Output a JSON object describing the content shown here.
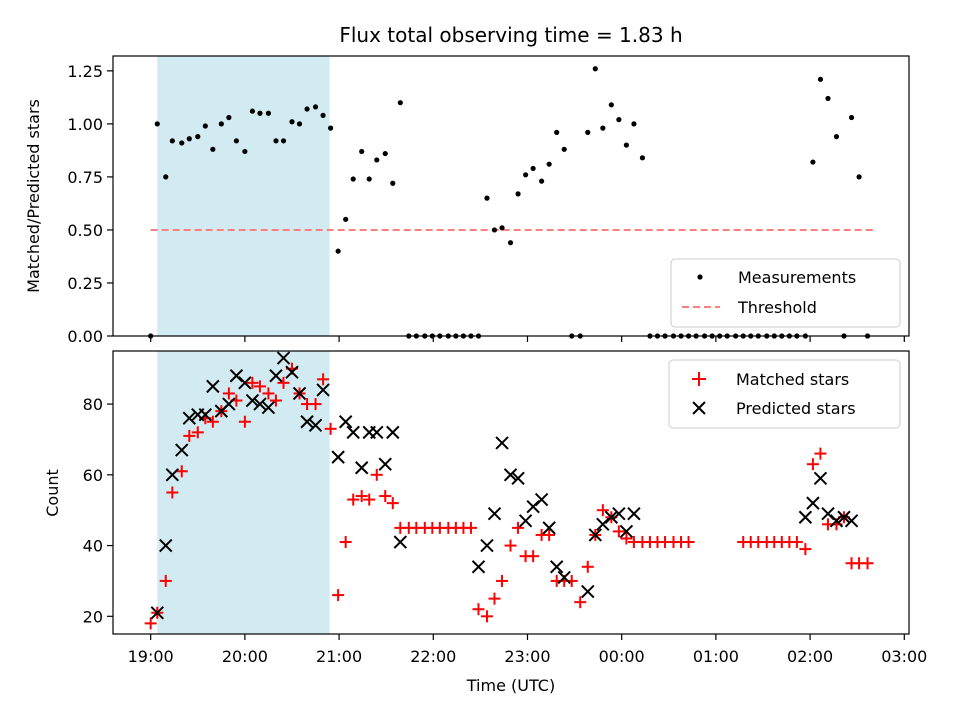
{
  "chart_data": {
    "type": "scatter",
    "title": "Flux total observing time = 1.83 h",
    "xlabel": "Time (UTC)",
    "x_range_hours": [
      18.6,
      27.05
    ],
    "x_ticks": [
      {
        "h": 19,
        "label": "19:00"
      },
      {
        "h": 20,
        "label": "20:00"
      },
      {
        "h": 21,
        "label": "21:00"
      },
      {
        "h": 22,
        "label": "22:00"
      },
      {
        "h": 23,
        "label": "23:00"
      },
      {
        "h": 24,
        "label": "00:00"
      },
      {
        "h": 25,
        "label": "01:00"
      },
      {
        "h": 26,
        "label": "02:00"
      },
      {
        "h": 27,
        "label": "03:00"
      }
    ],
    "observing_window_hours": [
      19.07,
      20.9
    ],
    "highlight_color": "#add8e6",
    "top_panel": {
      "ylabel": "Matched/Predicted stars",
      "ylim": [
        0,
        1.32
      ],
      "y_ticks": [
        {
          "v": 0,
          "label": "0.00"
        },
        {
          "v": 0.25,
          "label": "0.25"
        },
        {
          "v": 0.5,
          "label": "0.50"
        },
        {
          "v": 0.75,
          "label": "0.75"
        },
        {
          "v": 1.0,
          "label": "1.00"
        },
        {
          "v": 1.25,
          "label": "1.25"
        }
      ],
      "threshold": {
        "value": 0.5,
        "x_from": 19.0,
        "x_to": 26.7,
        "color": "#ff7f7f",
        "label": "Threshold"
      },
      "measurements": {
        "label": "Measurements",
        "color": "#000000",
        "x": [
          19.0,
          19.07,
          19.16,
          19.23,
          19.33,
          19.41,
          19.5,
          19.58,
          19.66,
          19.75,
          19.83,
          19.91,
          20.0,
          20.08,
          20.16,
          20.25,
          20.33,
          20.41,
          20.5,
          20.58,
          20.66,
          20.75,
          20.83,
          20.91,
          20.99,
          21.07,
          21.15,
          21.24,
          21.32,
          21.4,
          21.49,
          21.57,
          21.65,
          21.74,
          21.82,
          21.91,
          21.99,
          22.07,
          22.16,
          22.24,
          22.32,
          22.4,
          22.48,
          22.57,
          22.65,
          22.73,
          22.82,
          22.9,
          22.98,
          23.06,
          23.15,
          23.23,
          23.31,
          23.39,
          23.47,
          23.56,
          23.64,
          23.72,
          23.8,
          23.89,
          23.97,
          24.05,
          24.13,
          24.22,
          24.3,
          24.38,
          24.46,
          24.55,
          24.63,
          24.71,
          24.79,
          24.88,
          24.96,
          25.04,
          25.12,
          25.21,
          25.29,
          25.37,
          25.45,
          25.54,
          25.62,
          25.7,
          25.78,
          25.86,
          25.95,
          26.03,
          26.11,
          26.19,
          26.28,
          26.36,
          26.44,
          26.52,
          26.61
        ],
        "y": [
          0.0,
          1.0,
          0.75,
          0.92,
          0.91,
          0.93,
          0.94,
          0.99,
          0.88,
          1.0,
          1.03,
          0.92,
          0.87,
          1.06,
          1.05,
          1.05,
          0.92,
          0.92,
          1.01,
          1.0,
          1.07,
          1.08,
          1.04,
          0.98,
          0.4,
          0.55,
          0.74,
          0.87,
          0.74,
          0.83,
          0.86,
          0.72,
          1.1,
          0.0,
          0.0,
          0.0,
          0.0,
          0.0,
          0.0,
          0.0,
          0.0,
          0.0,
          0.0,
          0.65,
          0.5,
          0.51,
          0.44,
          0.67,
          0.76,
          0.79,
          0.73,
          0.81,
          0.96,
          0.88,
          0.0,
          0.0,
          0.96,
          1.26,
          0.98,
          1.09,
          1.02,
          0.9,
          1.0,
          0.84,
          0.0,
          0.0,
          0.0,
          0.0,
          0.0,
          0.0,
          0.0,
          0.0,
          0.0,
          0.0,
          0.0,
          0.0,
          0.0,
          0.0,
          0.0,
          0.0,
          0.0,
          0.0,
          0.0,
          0.0,
          0.0,
          0.82,
          1.21,
          1.12,
          0.94,
          0.0,
          1.03,
          0.75,
          0.0
        ]
      },
      "legend_position": "lower-right"
    },
    "bottom_panel": {
      "ylabel": "Count",
      "ylim": [
        15,
        95
      ],
      "y_ticks": [
        {
          "v": 20,
          "label": "20"
        },
        {
          "v": 40,
          "label": "40"
        },
        {
          "v": 60,
          "label": "60"
        },
        {
          "v": 80,
          "label": "80"
        }
      ],
      "legend_position": "upper-right",
      "series": [
        {
          "name": "Matched stars",
          "marker": "plus",
          "color": "#ff0000",
          "x": [
            19.0,
            19.07,
            19.16,
            19.23,
            19.33,
            19.41,
            19.5,
            19.58,
            19.66,
            19.75,
            19.83,
            19.91,
            20.0,
            20.08,
            20.16,
            20.25,
            20.33,
            20.41,
            20.5,
            20.58,
            20.66,
            20.75,
            20.83,
            20.91,
            20.99,
            21.07,
            21.15,
            21.24,
            21.32,
            21.4,
            21.49,
            21.57,
            21.65,
            21.74,
            21.82,
            21.91,
            21.99,
            22.07,
            22.16,
            22.24,
            22.32,
            22.4,
            22.48,
            22.57,
            22.65,
            22.73,
            22.82,
            22.9,
            22.98,
            23.06,
            23.15,
            23.23,
            23.31,
            23.39,
            23.47,
            23.56,
            23.64,
            23.72,
            23.8,
            23.89,
            23.97,
            24.05,
            24.13,
            24.22,
            24.3,
            24.38,
            24.46,
            24.55,
            24.63,
            24.71,
            25.29,
            25.37,
            25.45,
            25.54,
            25.62,
            25.7,
            25.78,
            25.86,
            25.95,
            26.03,
            26.11,
            26.19,
            26.28,
            26.36,
            26.44,
            26.52,
            26.61
          ],
          "y": [
            18,
            21,
            30,
            55,
            61,
            71,
            72,
            76,
            75,
            78,
            83,
            81,
            75,
            86,
            85,
            83,
            81,
            86,
            90,
            83,
            80,
            80,
            87,
            73,
            26,
            41,
            53,
            54,
            53,
            60,
            54,
            52,
            45,
            45,
            45,
            45,
            45,
            45,
            45,
            45,
            45,
            45,
            22,
            20,
            25,
            30,
            40,
            45,
            37,
            37,
            43,
            43,
            30,
            30,
            30,
            24,
            34,
            43,
            50,
            48,
            44,
            42,
            41,
            41,
            41,
            41,
            41,
            41,
            41,
            41,
            41,
            41,
            41,
            41,
            41,
            41,
            41,
            41,
            39,
            63,
            66,
            46,
            46,
            48,
            35,
            35,
            35
          ]
        },
        {
          "name": "Predicted stars",
          "marker": "x",
          "color": "#000000",
          "x": [
            19.07,
            19.16,
            19.23,
            19.33,
            19.41,
            19.5,
            19.58,
            19.66,
            19.75,
            19.83,
            19.91,
            20.0,
            20.08,
            20.16,
            20.25,
            20.33,
            20.41,
            20.5,
            20.58,
            20.66,
            20.75,
            20.83,
            20.99,
            21.07,
            21.15,
            21.24,
            21.32,
            21.4,
            21.49,
            21.57,
            21.65,
            22.48,
            22.57,
            22.65,
            22.73,
            22.82,
            22.9,
            22.98,
            23.06,
            23.15,
            23.23,
            23.31,
            23.39,
            23.64,
            23.72,
            23.8,
            23.89,
            23.97,
            24.05,
            24.13,
            25.95,
            26.03,
            26.11,
            26.19,
            26.28,
            26.36,
            26.44
          ],
          "y": [
            21,
            40,
            60,
            67,
            76,
            77,
            77,
            85,
            78,
            80,
            88,
            86,
            81,
            80,
            79,
            88,
            93,
            89,
            83,
            75,
            74,
            84,
            65,
            75,
            72,
            62,
            72,
            72,
            63,
            72,
            41,
            34,
            40,
            49,
            69,
            60,
            59,
            47,
            51,
            53,
            45,
            34,
            31,
            27,
            43,
            46,
            48,
            49,
            44,
            49,
            48,
            52,
            59,
            49,
            47,
            48,
            47
          ]
        }
      ]
    }
  }
}
